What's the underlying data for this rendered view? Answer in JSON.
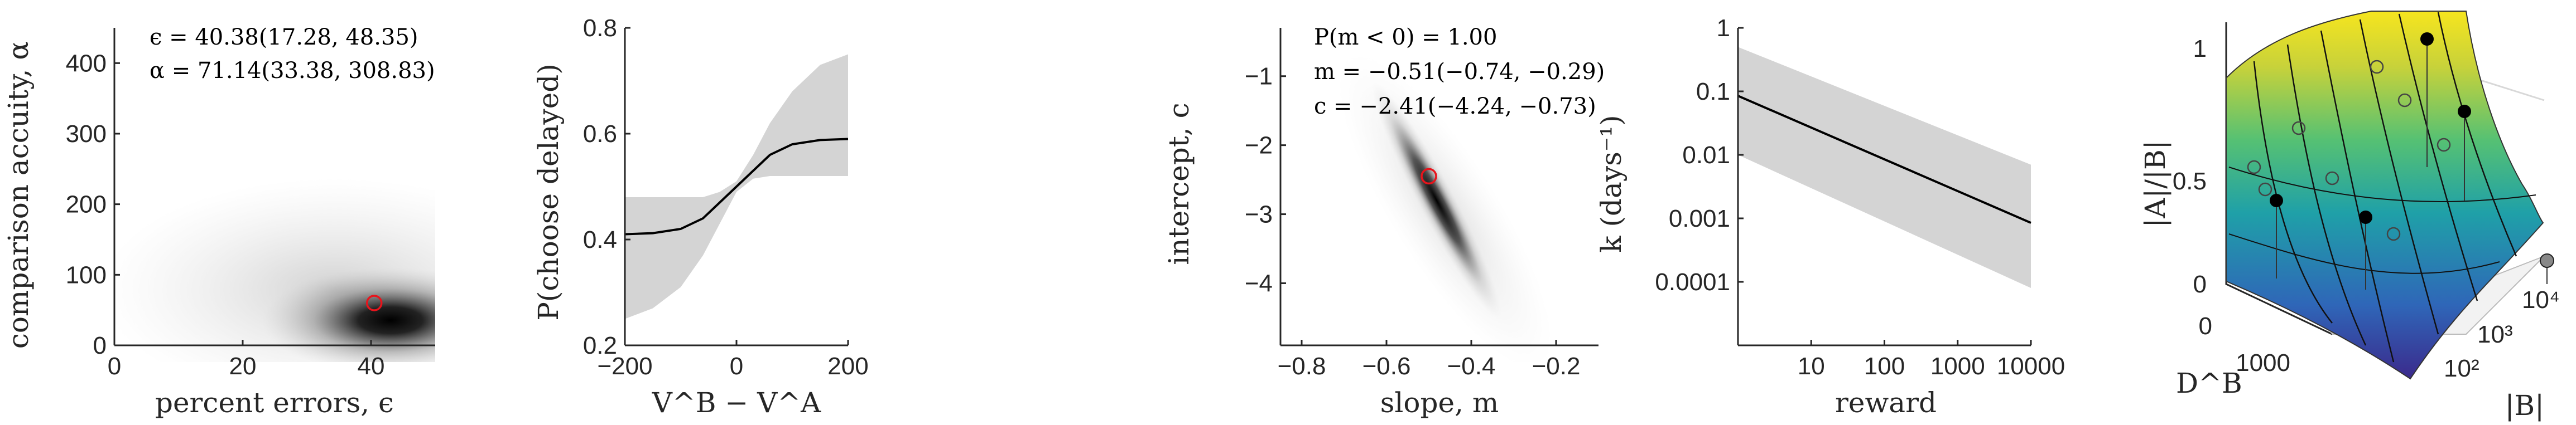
{
  "chart_data": [
    {
      "type": "heatmap",
      "xlabel": "percent errors, ϵ",
      "ylabel": "comparison accuity, α",
      "xlim": [
        0,
        50
      ],
      "ylim": [
        0,
        450
      ],
      "xticks": [
        0,
        20,
        40
      ],
      "yticks": [
        0,
        100,
        200,
        300,
        400
      ],
      "annotations": [
        "ϵ = 40.38(17.28, 48.35)",
        "α = 71.14(33.38, 308.83)"
      ],
      "point_estimate": {
        "x": 40.5,
        "y": 60
      },
      "density_center": {
        "x": 42,
        "y": 65
      }
    },
    {
      "type": "line",
      "xlabel": "V^B − V^A",
      "ylabel": "P(choose delayed)",
      "xlim": [
        -200,
        200
      ],
      "ylim": [
        0.2,
        0.8
      ],
      "xticks": [
        -200,
        0,
        200
      ],
      "yticks": [
        0.2,
        0.4,
        0.6,
        0.8
      ],
      "series": [
        {
          "x": [
            -200,
            -150,
            -100,
            -60,
            -30,
            0,
            30,
            60,
            100,
            150,
            200
          ],
          "y": [
            0.41,
            0.412,
            0.42,
            0.44,
            0.47,
            0.5,
            0.53,
            0.56,
            0.58,
            0.588,
            0.59
          ],
          "lower": [
            0.25,
            0.27,
            0.31,
            0.37,
            0.43,
            0.49,
            0.515,
            0.52,
            0.52,
            0.52,
            0.52
          ],
          "upper": [
            0.48,
            0.48,
            0.48,
            0.48,
            0.49,
            0.51,
            0.56,
            0.62,
            0.68,
            0.73,
            0.75
          ]
        }
      ]
    },
    {
      "type": "heatmap",
      "xlabel": "slope, m",
      "ylabel": "intercept, c",
      "xlim": [
        -0.85,
        -0.1
      ],
      "ylim": [
        -4.9,
        -0.3
      ],
      "xticks": [
        -0.8,
        -0.6,
        -0.4,
        -0.2
      ],
      "yticks": [
        -4,
        -3,
        -2,
        -1
      ],
      "annotations": [
        "P(m < 0) = 1.00",
        "m = −0.51(−0.74, −0.29)",
        "c = −2.41(−4.24, −0.73)"
      ],
      "point_estimate": {
        "x": -0.5,
        "y": -2.45
      }
    },
    {
      "type": "line",
      "xlabel": "reward",
      "ylabel": "k (days⁻¹)",
      "xscale": "log",
      "yscale": "log",
      "xlim": [
        1,
        10000
      ],
      "ylim": [
        1e-05,
        1
      ],
      "xticks": [
        "10",
        "100",
        "1000",
        "10000"
      ],
      "yticks": [
        "1",
        "0.1",
        "0.01",
        "0.001",
        "0.0001"
      ],
      "series": [
        {
          "x": [
            1,
            10000
          ],
          "y": [
            0.085,
            0.00085
          ],
          "lower": [
            0.01,
            8e-05
          ],
          "upper": [
            0.5,
            0.007
          ]
        }
      ]
    },
    {
      "type": "surface",
      "xlabel": "D^B",
      "ylabel": "|B|",
      "zlabel": "|A|/|B|",
      "zlim": [
        0,
        1
      ],
      "zticks": [
        0,
        0.5,
        1
      ],
      "dticks": [
        0,
        1000
      ],
      "bticks": [
        "10²",
        "10³",
        "10⁴"
      ],
      "colormap": [
        "#3b2a8c",
        "#2f66b8",
        "#1fa0a8",
        "#56c173",
        "#c8d23a",
        "#f6e51e"
      ]
    }
  ]
}
